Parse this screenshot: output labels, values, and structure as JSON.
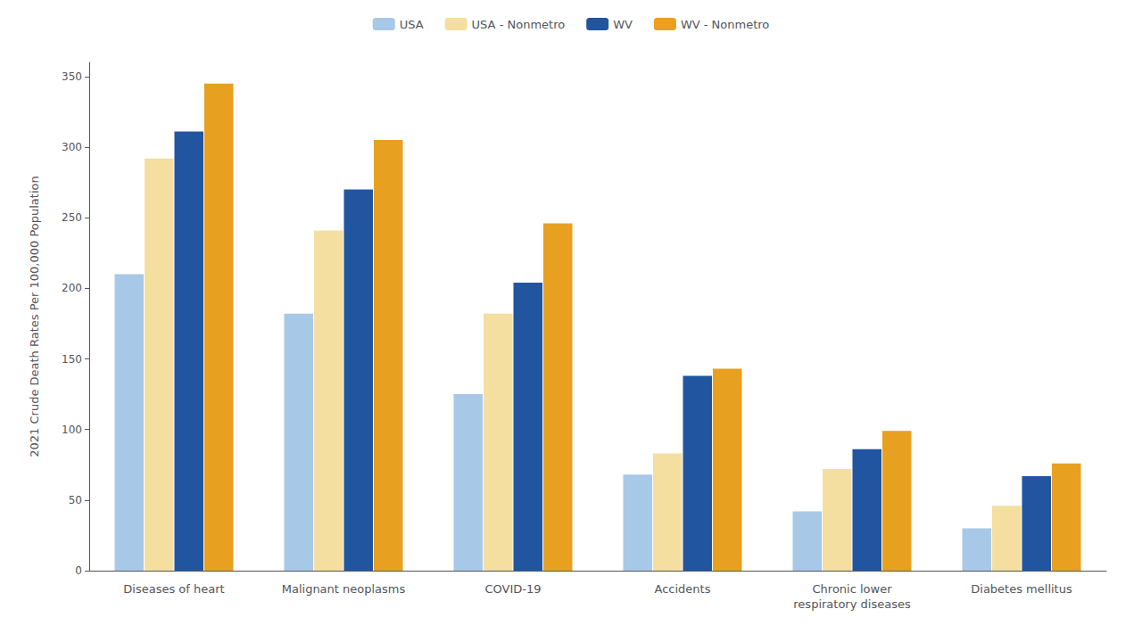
{
  "chart_data": {
    "type": "bar",
    "categories": [
      "Diseases of heart",
      "Malignant neoplasms",
      "COVID-19",
      "Accidents",
      "Chronic lower\nrespiratory diseases",
      "Diabetes mellitus"
    ],
    "series": [
      {
        "name": "USA",
        "color": "#a8c8e8",
        "values": [
          210,
          182,
          125,
          68,
          42,
          30
        ]
      },
      {
        "name": "USA - Nonmetro",
        "color": "#f5dfa0",
        "values": [
          292,
          241,
          182,
          83,
          72,
          46
        ]
      },
      {
        "name": "WV",
        "color": "#2155a0",
        "values": [
          311,
          270,
          204,
          138,
          86,
          67
        ]
      },
      {
        "name": "WV - Nonmetro",
        "color": "#e8a020",
        "values": [
          345,
          305,
          246,
          143,
          99,
          76
        ]
      }
    ],
    "ylabel": "2021 Crude Death Rates Per 100,000 Population",
    "ylim": [
      0,
      360
    ],
    "yticks": [
      0,
      50,
      100,
      150,
      200,
      250,
      300,
      350
    ],
    "grid": false,
    "legend": "top"
  }
}
